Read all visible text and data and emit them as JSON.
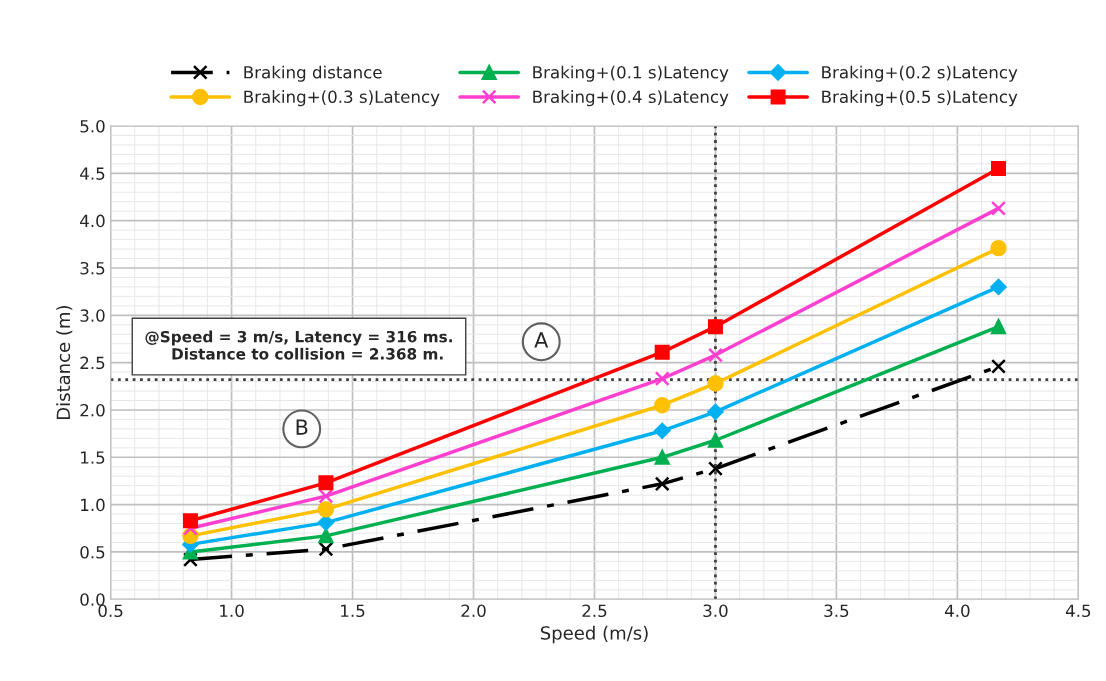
{
  "chart_data": {
    "type": "line",
    "xlabel": "Speed (m/s)",
    "ylabel": "Distance (m)",
    "x": [
      0.83,
      1.39,
      2.78,
      3.0,
      4.17
    ],
    "series": [
      {
        "name": "Braking distance",
        "color": "#000000",
        "values": [
          0.42,
          0.53,
          1.22,
          1.38,
          2.46
        ],
        "marker": "cross",
        "line_style": "dashdot"
      },
      {
        "name": "Braking+(0.1 s)Latency",
        "color": "#00b050",
        "values": [
          0.5,
          0.67,
          1.5,
          1.68,
          2.88
        ],
        "marker": "triangle",
        "line_style": "solid"
      },
      {
        "name": "Braking+(0.2 s)Latency",
        "color": "#00b0f0",
        "values": [
          0.58,
          0.81,
          1.78,
          1.98,
          3.3
        ],
        "marker": "diamond",
        "line_style": "solid"
      },
      {
        "name": "Braking+(0.3 s)Latency",
        "color": "#ffc000",
        "values": [
          0.67,
          0.95,
          2.05,
          2.28,
          3.71
        ],
        "marker": "circle",
        "line_style": "solid"
      },
      {
        "name": "Braking+(0.4 s)Latency",
        "color": "#ff3fd0",
        "values": [
          0.75,
          1.09,
          2.33,
          2.58,
          4.13
        ],
        "marker": "cross",
        "line_style": "solid"
      },
      {
        "name": "Braking+(0.5 s)Latency",
        "color": "#ff0000",
        "values": [
          0.83,
          1.23,
          2.61,
          2.88,
          4.55
        ],
        "marker": "square",
        "line_style": "solid"
      }
    ],
    "xlim": [
      0.5,
      4.5
    ],
    "xticks": [
      {
        "value": 0.5,
        "label": "0.5"
      },
      {
        "value": 1.0,
        "label": "1.0"
      },
      {
        "value": 1.5,
        "label": "1.5"
      },
      {
        "value": 2.0,
        "label": "2.0"
      },
      {
        "value": 2.5,
        "label": "2.5"
      },
      {
        "value": 3.0,
        "label": "3.0"
      },
      {
        "value": 3.5,
        "label": "3.5"
      },
      {
        "value": 4.0,
        "label": "4.0"
      },
      {
        "value": 4.5,
        "label": "4.5"
      }
    ],
    "ylim": [
      0,
      5
    ],
    "yticks": [
      {
        "value": 0,
        "label": "0.0"
      },
      {
        "value": 0.5,
        "label": "0.5"
      },
      {
        "value": 1.0,
        "label": "1.0"
      },
      {
        "value": 1.5,
        "label": "1.5"
      },
      {
        "value": 2.0,
        "label": "2.0"
      },
      {
        "value": 2.5,
        "label": "2.5"
      },
      {
        "value": 3.0,
        "label": "3.0"
      },
      {
        "value": 3.5,
        "label": "3.5"
      },
      {
        "value": 4.0,
        "label": "4.0"
      },
      {
        "value": 4.5,
        "label": "4.5"
      },
      {
        "value": 5.0,
        "label": "5.0"
      }
    ],
    "ref_lines": [
      {
        "axis": "y",
        "value": 2.32,
        "color": "#404040",
        "line_style": "dotted"
      },
      {
        "axis": "x",
        "value": 3.0,
        "color": "#404040",
        "line_style": "dotted"
      }
    ],
    "annotations": [
      {
        "text": "@Speed = 3 m/s, Latency = 316 ms.\n     Distance to collision = 2.368 m."
      },
      {
        "text": "A",
        "x": 2.28,
        "y": 2.72
      },
      {
        "text": "B",
        "x": 1.29,
        "y": 1.8
      }
    ],
    "grid": true,
    "legend": "top"
  }
}
